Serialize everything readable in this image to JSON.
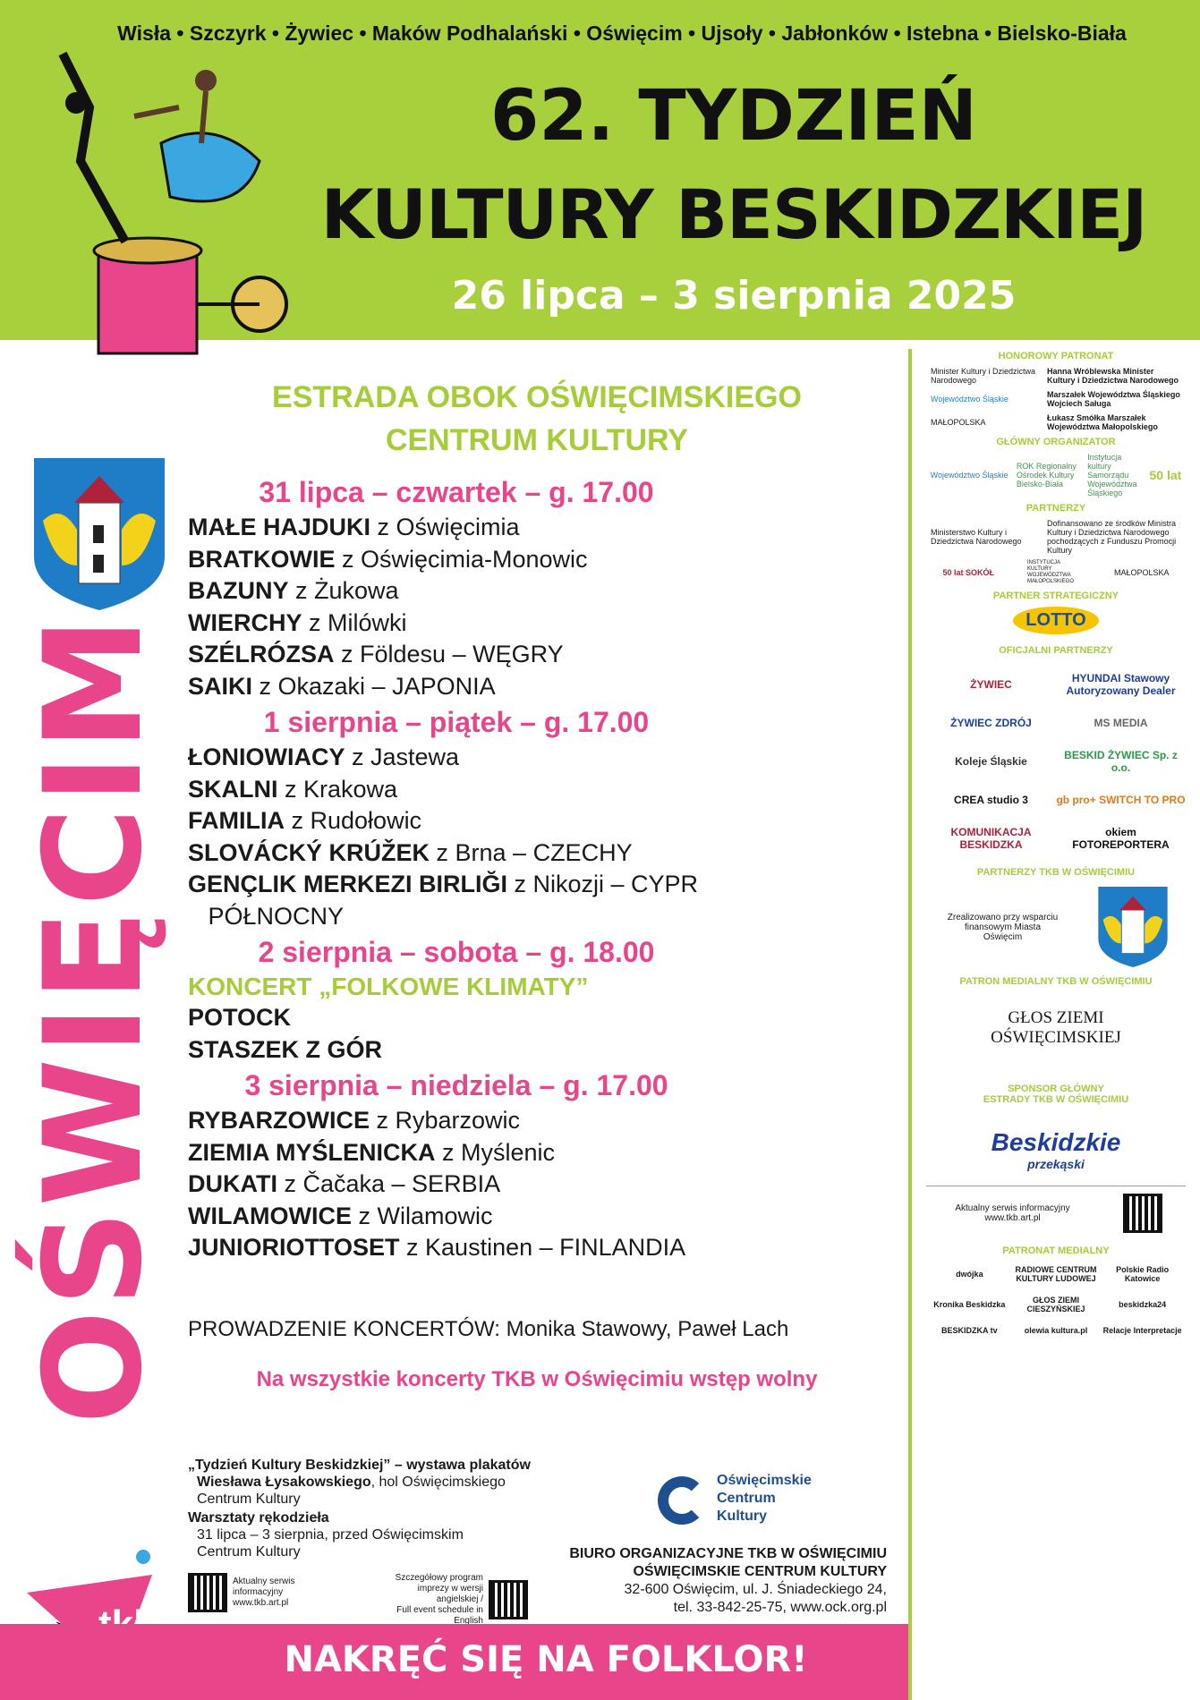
{
  "header": {
    "towns": "Wisła • Szczyrk • Żywiec • Maków Podhalański • Oświęcim • Ujsoły • Jabłonków • Istebna • Bielsko-Biała",
    "title_line1": "62. TYDZIEŃ",
    "title_line2": "KULTURY BESKIDZKIEJ",
    "dates": "26 lipca – 3 sierpnia 2025"
  },
  "colors": {
    "green": "#a8d03c",
    "pink": "#e8458b",
    "blue": "#1d4f91"
  },
  "venue": {
    "line1": "ESTRADA OBOK OŚWIĘCIMSKIEGO",
    "line2": "CENTRUM KULTURY"
  },
  "city_vertical": "OŚWIĘCIM",
  "program": [
    {
      "day": "31 lipca – czwartek – g. 17.00",
      "acts": [
        [
          "MAŁE HAJDUKI",
          " z Oświęcimia"
        ],
        [
          "BRATKOWIE",
          " z Oświęcimia-Monowic"
        ],
        [
          "BAZUNY",
          " z Żukowa"
        ],
        [
          "WIERCHY",
          " z Milówki"
        ],
        [
          "SZÉLRÓZSA",
          " z Földesu – WĘGRY"
        ],
        [
          "SAIKI",
          " z Okazaki – JAPONIA"
        ]
      ]
    },
    {
      "day": "1 sierpnia – piątek – g. 17.00",
      "acts": [
        [
          "ŁONIOWIACY",
          " z Jastewa"
        ],
        [
          "SKALNI",
          " z Krakowa"
        ],
        [
          "FAMILIA",
          " z Rudołowic"
        ],
        [
          "SLOVÁCKÝ KRÚŽEK",
          " z Brna – CZECHY"
        ],
        [
          "GENÇLIK MERKEZI BIRLIĞI",
          " z Nikozji – CYPR"
        ],
        [
          "",
          "   PÓŁNOCNY"
        ]
      ]
    },
    {
      "day": "2 sierpnia – sobota – g. 18.00",
      "concert": "KONCERT „FOLKOWE KLIMATY”",
      "acts": [
        [
          "POTOCK",
          ""
        ],
        [
          "STASZEK Z GÓR",
          ""
        ]
      ]
    },
    {
      "day": "3 sierpnia – niedziela – g. 17.00",
      "acts": [
        [
          "RYBARZOWICE",
          " z Rybarzowic"
        ],
        [
          "ZIEMIA MYŚLENICKA",
          " z Myślenic"
        ],
        [
          "DUKATI",
          " z Čačaka – SERBIA"
        ],
        [
          "WILAMOWICE",
          " z Wilamowic"
        ],
        [
          "JUNIORIOTTOSET",
          " z Kaustinen – FINLANDIA"
        ]
      ]
    }
  ],
  "hosts": "PROWADZENIE KONCERTÓW: Monika Stawowy, Paweł Lach",
  "free_entry": "Na wszystkie koncerty TKB w Oświęcimiu wstęp wolny",
  "exhibition": {
    "title": "„Tydzień Kultury Beskidzkiej” – wystawa plakatów",
    "author": "Wiesława Łysakowskiego",
    "place1": ", hol Oświęcimskiego",
    "place2": "Centrum Kultury",
    "workshop_title": "Warsztaty rękodzieła",
    "workshop_line1": "31 lipca – 3 sierpnia, przed Oświęcimskim",
    "workshop_line2": "Centrum Kultury"
  },
  "qr": {
    "left": [
      "Aktualny serwis",
      "informacyjny",
      "www.tkb.art.pl"
    ],
    "right": [
      "Szczegółowy program",
      "imprezy w wersji angielskiej /",
      "Full event schedule in English"
    ]
  },
  "ock_logo": [
    "Oświęcimskie",
    "Centrum",
    "Kultury"
  ],
  "office": [
    "BIURO ORGANIZACYJNE TKB W OŚWIĘCIMIU",
    "OŚWIĘCIMSKIE CENTRUM KULTURY",
    "32-600 Oświęcim, ul. J. Śniadeckiego 24,",
    "tel. 33-842-25-75, www.ock.org.pl"
  ],
  "tkb_logo": "TYDZIEŃ KULTURY BESKIDZKIEJ tkb",
  "footer": "NAKRĘĆ SIĘ NA FOLKLOR!",
  "sidebar": {
    "honorowy": "HONOROWY PATRONAT",
    "h1a": "Minister Kultury i Dziedzictwa Narodowego",
    "h1b": "Hanna Wróblewska Minister Kultury i Dziedzictwa Narodowego",
    "h2a": "Województwo Śląskie",
    "h2b": "Marszałek Województwa Śląskiego Wojciech Saługa",
    "h3a": "MAŁOPOLSKA",
    "h3b": "Łukasz Smółka Marszałek Województwa Małopolskiego",
    "glowny": "GŁÓWNY ORGANIZATOR",
    "g1": "Województwo Śląskie",
    "g2": "ROK Regionalny Ośrodek Kultury Bielsko-Biała",
    "g3": "Instytucja kultury Samorządu Województwa Śląskiego",
    "g4": "50 lat",
    "partnerzy": "PARTNERZY",
    "p1": "Ministerstwo Kultury i Dziedzictwa Narodowego",
    "p2": "Dofinansowano ze środków Ministra Kultury i Dziedzictwa Narodowego pochodzących z Funduszu Promocji Kultury",
    "p3": "50 lat SOKÓŁ",
    "p4": "INSTYTUCJA KULTURY WOJEWÓDZTWA MAŁOPOLSKIEGO",
    "p5": "MAŁOPOLSKA",
    "strategiczny": "PARTNER STRATEGICZNY",
    "lotto": "LOTTO",
    "oficjalni": "OFICJALNI PARTNERZY",
    "o": [
      "ŻYWIEC",
      "HYUNDAI Stawowy Autoryzowany Dealer",
      "ŻYWIEC ZDRÓJ",
      "MS MEDIA",
      "Koleje Śląskie",
      "BESKID ŻYWIEC Sp. z o.o.",
      "CREA studio 3",
      "gb pro+ SWITCH TO PRO",
      "KOMUNIKACJA BESKIDZKA",
      "okiem FOTOREPORTERA"
    ],
    "tkb_partners": "PARTNERZY TKB W OŚWIĘCIMIU",
    "support": "Zrealizowano przy wsparciu finansowym Miasta Oświęcim",
    "media_patron": "PATRON MEDIALNY TKB W OŚWIĘCIMIU",
    "glos1": "GŁOS ZIEMI",
    "glos2": "OŚWIĘCIMSKIEJ",
    "sponsor1": "SPONSOR GŁÓWNY",
    "sponsor2": "ESTRADY TKB W OŚWIĘCIMIU",
    "beskidzkie": "Beskidzkie",
    "przekaski": "przekąski",
    "service": "Aktualny serwis informacyjny www.tkb.art.pl",
    "patronat_medialny": "PATRONAT MEDIALNY",
    "m": [
      "dwójka",
      "RADIOWE CENTRUM KULTURY LUDOWEJ",
      "Polskie Radio Katowice",
      "Kronika Beskidzka",
      "GŁOS ZIEMI CIESZYŃSKIEJ",
      "beskidzka24",
      "BESKIDZKA tv",
      "olewia kultura.pl",
      "Relacje Interpretacje"
    ]
  }
}
